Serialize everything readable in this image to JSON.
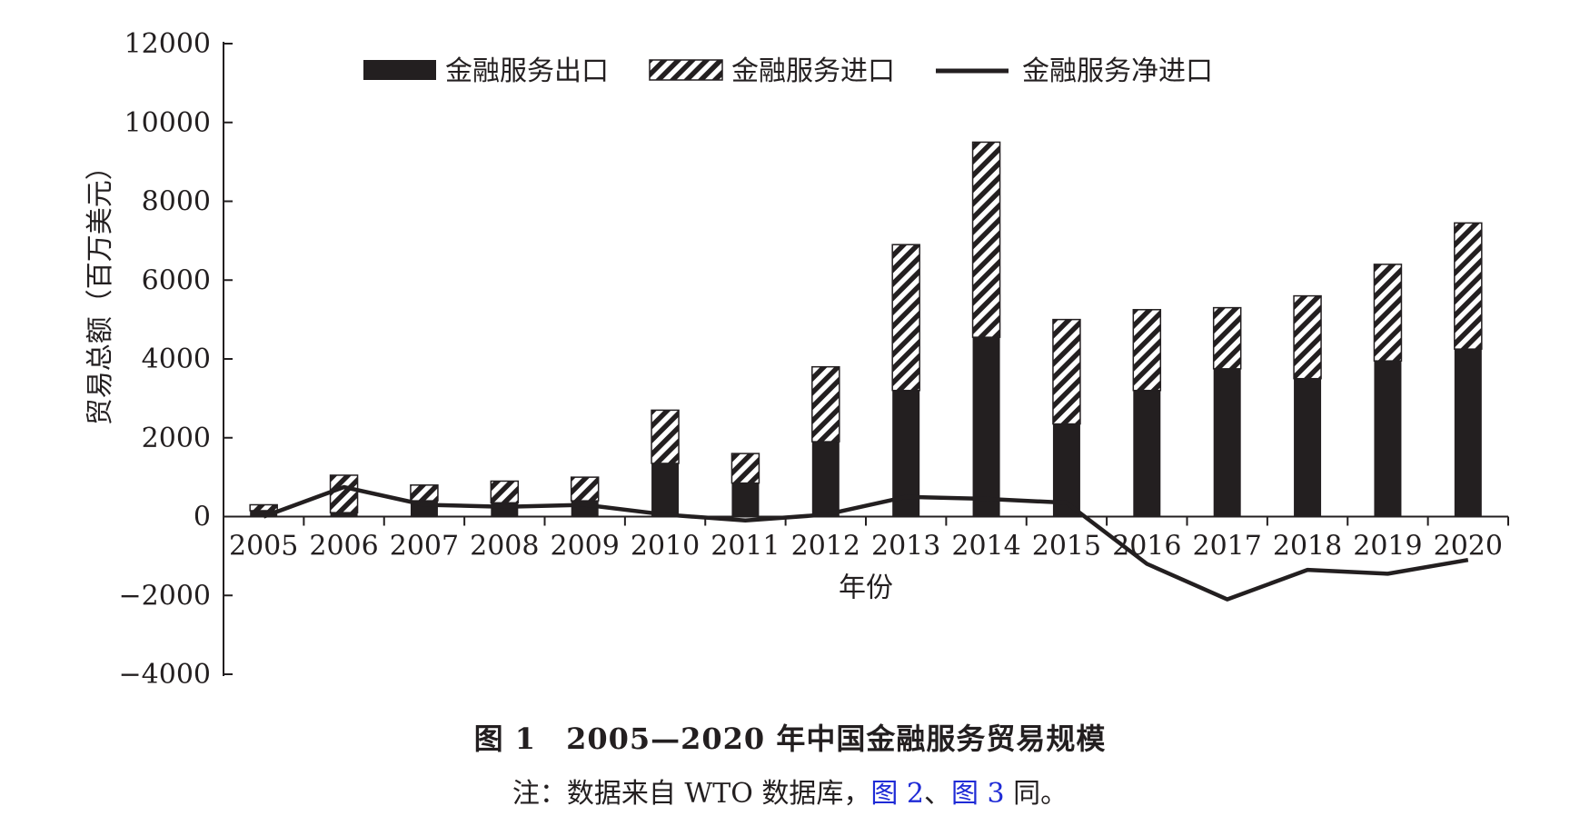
{
  "chart_data": {
    "type": "bar",
    "categories": [
      "2005",
      "2006",
      "2007",
      "2008",
      "2009",
      "2010",
      "2011",
      "2012",
      "2013",
      "2014",
      "2015",
      "2016",
      "2017",
      "2018",
      "2019",
      "2020"
    ],
    "series": [
      {
        "name": "金融服务出口",
        "kind": "bar",
        "pattern": "solid",
        "values": [
          150,
          100,
          400,
          350,
          400,
          1350,
          850,
          1900,
          3200,
          4550,
          2350,
          3200,
          3750,
          3500,
          3950,
          4250
        ]
      },
      {
        "name": "金融服务进口",
        "kind": "bar",
        "pattern": "hatched",
        "values": [
          150,
          950,
          400,
          550,
          600,
          1350,
          750,
          1900,
          3700,
          4950,
          2650,
          2050,
          1550,
          2100,
          2450,
          3200
        ]
      },
      {
        "name": "金融服务净进口",
        "kind": "line",
        "values": [
          0,
          750,
          300,
          250,
          300,
          50,
          -100,
          50,
          500,
          450,
          350,
          -1200,
          -2100,
          -1350,
          -1450,
          -1100
        ]
      }
    ],
    "ylabel": "贸易总额（百万美元）",
    "xlabel": "年份",
    "ylim": [
      -4000,
      12000
    ],
    "yticks": [
      12000,
      10000,
      8000,
      6000,
      4000,
      2000,
      0,
      -2000,
      -4000
    ],
    "ytick_labels": [
      "12000",
      "10000",
      "8000",
      "6000",
      "4000",
      "2000",
      "0",
      "−2000",
      "−4000"
    ],
    "legend_position": "top",
    "stacked": true,
    "grid": false,
    "colors": {
      "bar": "#231f20",
      "line": "#231f20"
    }
  },
  "caption": {
    "title": "图 1　2005—2020 年中国金融服务贸易规模",
    "note_prefix": "注：数据来自 WTO 数据库，",
    "note_link1": "图 2",
    "note_sep": "、",
    "note_link2": "图 3",
    "note_suffix": " 同。"
  }
}
